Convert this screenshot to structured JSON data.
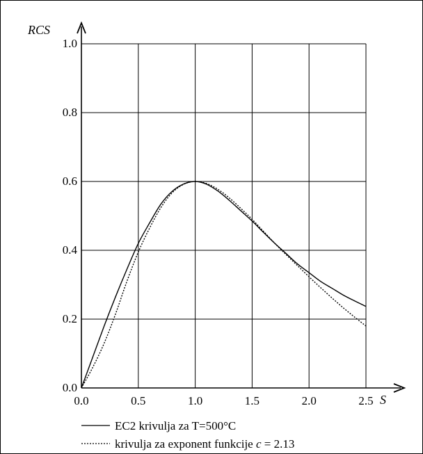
{
  "chart_data": {
    "type": "line",
    "title": "",
    "xlabel": "S",
    "ylabel": "RCS",
    "xlim": [
      0.0,
      2.5
    ],
    "ylim": [
      0.0,
      1.0
    ],
    "grid": true,
    "legend_position": "bottom",
    "x_ticks": [
      "0.0",
      "0.5",
      "1.0",
      "1.5",
      "2.0",
      "2.5"
    ],
    "y_ticks": [
      "0.0",
      "0.2",
      "0.4",
      "0.6",
      "0.8",
      "1.0"
    ],
    "series": [
      {
        "name": "EC2 krivulja za T=500°C",
        "style": "solid",
        "color": "#000000",
        "x": [
          0.0,
          0.1,
          0.2,
          0.3,
          0.4,
          0.5,
          0.6,
          0.7,
          0.8,
          0.9,
          1.0,
          1.1,
          1.2,
          1.3,
          1.4,
          1.5,
          1.6,
          1.7,
          1.8,
          1.9,
          2.0,
          2.1,
          2.2,
          2.3,
          2.4,
          2.5
        ],
        "y": [
          0.0,
          0.09,
          0.18,
          0.265,
          0.345,
          0.42,
          0.48,
          0.535,
          0.572,
          0.593,
          0.6,
          0.592,
          0.572,
          0.545,
          0.515,
          0.485,
          0.452,
          0.42,
          0.39,
          0.36,
          0.335,
          0.31,
          0.29,
          0.27,
          0.253,
          0.237
        ]
      },
      {
        "name_prefix": "krivulja za exponent funkcije ",
        "name_var": "c",
        "name_suffix": " = 2.13",
        "style": "dotted",
        "color": "#000000",
        "x": [
          0.0,
          0.1,
          0.2,
          0.3,
          0.4,
          0.5,
          0.6,
          0.7,
          0.8,
          0.9,
          1.0,
          1.1,
          1.2,
          1.3,
          1.4,
          1.5,
          1.6,
          1.7,
          1.8,
          1.9,
          2.0,
          2.1,
          2.2,
          2.3,
          2.4,
          2.5
        ],
        "y": [
          0.0,
          0.06,
          0.13,
          0.215,
          0.31,
          0.395,
          0.465,
          0.525,
          0.568,
          0.592,
          0.6,
          0.594,
          0.577,
          0.552,
          0.522,
          0.49,
          0.455,
          0.42,
          0.387,
          0.355,
          0.323,
          0.292,
          0.262,
          0.233,
          0.206,
          0.18
        ]
      }
    ]
  }
}
